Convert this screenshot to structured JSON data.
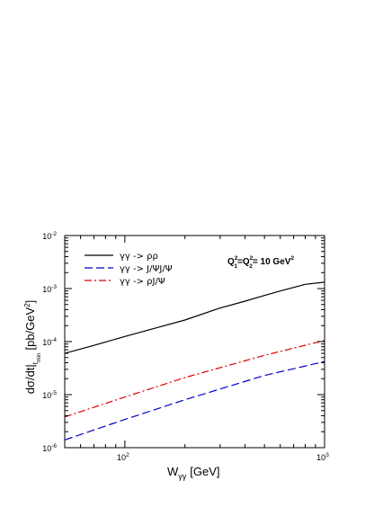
{
  "chart_data": {
    "type": "line",
    "xscale": "log",
    "yscale": "log",
    "xlim": [
      50,
      1000
    ],
    "ylim": [
      1e-06,
      0.01
    ],
    "grid": false,
    "legend_position": "top-left",
    "xlabel": "W",
    "xlabel_sub": "γγ",
    "xlabel_unit": "[GeV]",
    "ylabel_main": "dσ/dt|",
    "ylabel_sub": "t",
    "ylabel_subsub": "min",
    "ylabel_unit": "[pb/GeV",
    "ylabel_unit_sup": "2",
    "ylabel_close": "]",
    "annotation": {
      "parts": [
        "Q",
        "2",
        "1",
        "=Q",
        "2",
        "2",
        "= 10 GeV",
        "2"
      ]
    },
    "x_ticks": [
      {
        "value": 100,
        "base": "10",
        "exp": "2"
      },
      {
        "value": 1000,
        "base": "10",
        "exp": "3"
      }
    ],
    "y_ticks": [
      {
        "value": 1e-06,
        "base": "10",
        "exp": "-6"
      },
      {
        "value": 1e-05,
        "base": "10",
        "exp": "-5"
      },
      {
        "value": 0.0001,
        "base": "10",
        "exp": "-4"
      },
      {
        "value": 0.001,
        "base": "10",
        "exp": "-3"
      },
      {
        "value": 0.01,
        "base": "10",
        "exp": "-2"
      }
    ],
    "series": [
      {
        "name": "γγ -> ρρ",
        "color": "#000000",
        "dash": "solid",
        "x": [
          50,
          70,
          100,
          150,
          200,
          300,
          400,
          500,
          600,
          800,
          1000
        ],
        "y": [
          6e-05,
          8.5e-05,
          0.000125,
          0.00019,
          0.000255,
          0.00043,
          0.00058,
          0.00074,
          0.0009,
          0.0012,
          0.00132
        ]
      },
      {
        "name": "γγ -> J/ΨJ/Ψ",
        "color": "#0000cc",
        "dash": "dashed",
        "x": [
          50,
          100,
          200,
          500,
          1000
        ],
        "y": [
          1.4e-06,
          3.4e-06,
          8e-06,
          2.3e-05,
          4.2e-05
        ]
      },
      {
        "name": "γγ -> ρJ/Ψ",
        "color": "#dd0000",
        "dash": "dashdot",
        "x": [
          50,
          100,
          200,
          500,
          1000
        ],
        "y": [
          3.8e-06,
          9e-06,
          2.1e-05,
          5.5e-05,
          0.000105
        ]
      }
    ]
  }
}
